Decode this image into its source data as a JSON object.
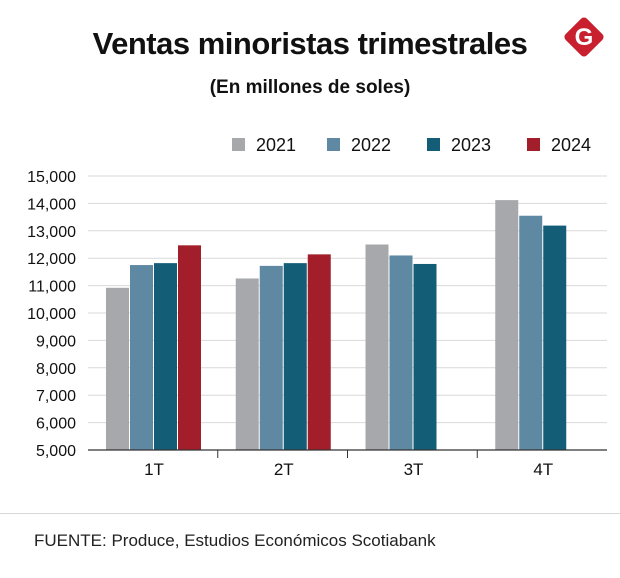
{
  "brand": {
    "logo_letter": "G",
    "logo_color": "#c8202f"
  },
  "chart_data": {
    "type": "bar",
    "title": "Ventas minoristas trimestrales",
    "subtitle": "(En millones de soles)",
    "categories": [
      "1T",
      "2T",
      "3T",
      "4T"
    ],
    "series": [
      {
        "name": "2021",
        "color": "#a7a8ab",
        "values": [
          10920,
          11260,
          12500,
          14120
        ]
      },
      {
        "name": "2022",
        "color": "#5f88a3",
        "values": [
          11750,
          11720,
          12100,
          13550
        ]
      },
      {
        "name": "2023",
        "color": "#145d76",
        "values": [
          11820,
          11820,
          11790,
          13190
        ]
      },
      {
        "name": "2024",
        "color": "#a21e2a",
        "values": [
          12470,
          12140,
          null,
          null
        ]
      }
    ],
    "ylim": [
      5000,
      15000
    ],
    "yticks": [
      5000,
      6000,
      7000,
      8000,
      9000,
      10000,
      11000,
      12000,
      13000,
      14000,
      15000
    ],
    "ytick_labels": [
      "5,000",
      "6,000",
      "7,000",
      "8,000",
      "9,000",
      "10,000",
      "11,000",
      "12,000",
      "13,000",
      "14,000",
      "15,000"
    ],
    "xlabel": "",
    "ylabel": "",
    "grid": true,
    "legend": "top-right"
  },
  "source": "FUENTE: Produce, Estudios Económicos Scotiabank"
}
